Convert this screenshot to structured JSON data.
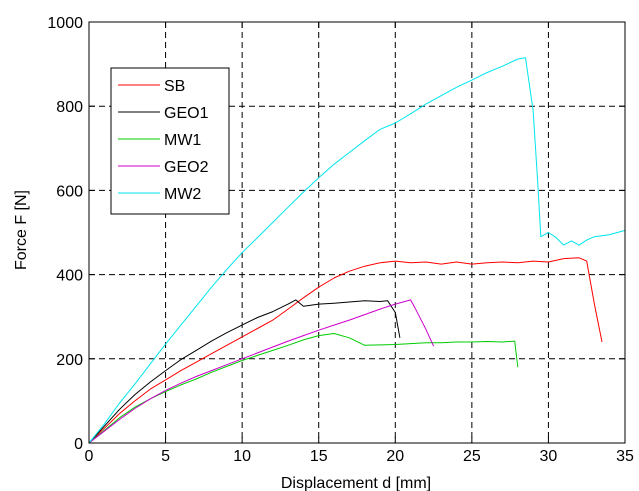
{
  "chart_data": {
    "type": "line",
    "xlabel": "Displacement d [mm]",
    "ylabel": "Force F [N]",
    "xlim": [
      0,
      35
    ],
    "ylim": [
      0,
      1000
    ],
    "xticks": [
      0,
      5,
      10,
      15,
      20,
      25,
      30,
      35
    ],
    "yticks": [
      0,
      200,
      400,
      600,
      800,
      1000
    ],
    "x_tick_labels": [
      "0",
      "5",
      "10",
      "15",
      "20",
      "25",
      "30",
      "35"
    ],
    "y_tick_labels": [
      "0",
      "200",
      "400",
      "600",
      "800",
      "1000"
    ],
    "grid": "dashed",
    "legend_position": "top-left",
    "series": [
      {
        "name": "SB",
        "color": "#ff0000",
        "points": [
          [
            0,
            0
          ],
          [
            1,
            35
          ],
          [
            2,
            70
          ],
          [
            3,
            100
          ],
          [
            4,
            128
          ],
          [
            5,
            150
          ],
          [
            6,
            172
          ],
          [
            7,
            192
          ],
          [
            8,
            212
          ],
          [
            9,
            232
          ],
          [
            10,
            252
          ],
          [
            11,
            272
          ],
          [
            12,
            292
          ],
          [
            13,
            318
          ],
          [
            14,
            345
          ],
          [
            15,
            370
          ],
          [
            16,
            392
          ],
          [
            17,
            408
          ],
          [
            18,
            420
          ],
          [
            19,
            428
          ],
          [
            20,
            432
          ],
          [
            21,
            428
          ],
          [
            22,
            430
          ],
          [
            23,
            425
          ],
          [
            24,
            430
          ],
          [
            25,
            425
          ],
          [
            26,
            428
          ],
          [
            27,
            430
          ],
          [
            28,
            428
          ],
          [
            29,
            432
          ],
          [
            30,
            430
          ],
          [
            31,
            438
          ],
          [
            32,
            440
          ],
          [
            32.5,
            432
          ],
          [
            33,
            330
          ],
          [
            33.5,
            240
          ]
        ]
      },
      {
        "name": "GEO1",
        "color": "#000000",
        "points": [
          [
            0,
            0
          ],
          [
            1,
            40
          ],
          [
            2,
            80
          ],
          [
            3,
            115
          ],
          [
            4,
            145
          ],
          [
            5,
            172
          ],
          [
            6,
            198
          ],
          [
            7,
            220
          ],
          [
            8,
            242
          ],
          [
            9,
            262
          ],
          [
            10,
            280
          ],
          [
            11,
            298
          ],
          [
            12,
            312
          ],
          [
            13,
            330
          ],
          [
            13.5,
            340
          ],
          [
            14,
            325
          ],
          [
            15,
            330
          ],
          [
            16,
            332
          ],
          [
            17,
            335
          ],
          [
            18,
            338
          ],
          [
            19,
            336
          ],
          [
            19.5,
            338
          ],
          [
            20,
            310
          ],
          [
            20.3,
            250
          ]
        ]
      },
      {
        "name": "MW1",
        "color": "#00cc00",
        "points": [
          [
            0,
            0
          ],
          [
            1,
            30
          ],
          [
            2,
            60
          ],
          [
            3,
            85
          ],
          [
            4,
            105
          ],
          [
            5,
            122
          ],
          [
            6,
            138
          ],
          [
            7,
            152
          ],
          [
            8,
            168
          ],
          [
            9,
            182
          ],
          [
            10,
            196
          ],
          [
            11,
            208
          ],
          [
            12,
            220
          ],
          [
            13,
            232
          ],
          [
            14,
            245
          ],
          [
            15,
            255
          ],
          [
            16,
            260
          ],
          [
            17,
            250
          ],
          [
            18,
            232
          ],
          [
            19,
            233
          ],
          [
            20,
            234
          ],
          [
            21,
            236
          ],
          [
            22,
            238
          ],
          [
            23,
            238
          ],
          [
            24,
            240
          ],
          [
            25,
            240
          ],
          [
            26,
            241
          ],
          [
            27,
            240
          ],
          [
            27.8,
            242
          ],
          [
            28,
            180
          ]
        ]
      },
      {
        "name": "GEO2",
        "color": "#cc00cc",
        "points": [
          [
            0,
            0
          ],
          [
            1,
            28
          ],
          [
            2,
            56
          ],
          [
            3,
            82
          ],
          [
            4,
            105
          ],
          [
            5,
            125
          ],
          [
            6,
            142
          ],
          [
            7,
            158
          ],
          [
            8,
            172
          ],
          [
            9,
            186
          ],
          [
            10,
            200
          ],
          [
            11,
            214
          ],
          [
            12,
            228
          ],
          [
            13,
            242
          ],
          [
            14,
            255
          ],
          [
            15,
            268
          ],
          [
            16,
            280
          ],
          [
            17,
            292
          ],
          [
            18,
            305
          ],
          [
            19,
            318
          ],
          [
            20,
            330
          ],
          [
            21,
            340
          ],
          [
            21.3,
            320
          ],
          [
            22,
            270
          ],
          [
            22.5,
            230
          ]
        ]
      },
      {
        "name": "MW2",
        "color": "#00e5ee",
        "points": [
          [
            0,
            0
          ],
          [
            1,
            45
          ],
          [
            2,
            95
          ],
          [
            3,
            140
          ],
          [
            4,
            188
          ],
          [
            5,
            235
          ],
          [
            6,
            280
          ],
          [
            7,
            325
          ],
          [
            8,
            370
          ],
          [
            9,
            412
          ],
          [
            10,
            452
          ],
          [
            11,
            488
          ],
          [
            12,
            524
          ],
          [
            13,
            560
          ],
          [
            14,
            596
          ],
          [
            15,
            630
          ],
          [
            16,
            662
          ],
          [
            17,
            690
          ],
          [
            18,
            718
          ],
          [
            19,
            745
          ],
          [
            20,
            760
          ],
          [
            21,
            782
          ],
          [
            22,
            805
          ],
          [
            23,
            825
          ],
          [
            24,
            845
          ],
          [
            25,
            862
          ],
          [
            26,
            880
          ],
          [
            27,
            895
          ],
          [
            28,
            912
          ],
          [
            28.5,
            915
          ],
          [
            29,
            790
          ],
          [
            29.3,
            620
          ],
          [
            29.5,
            490
          ],
          [
            30,
            500
          ],
          [
            30.5,
            488
          ],
          [
            31,
            470
          ],
          [
            31.5,
            480
          ],
          [
            32,
            470
          ],
          [
            32.5,
            482
          ],
          [
            33,
            490
          ],
          [
            34,
            495
          ],
          [
            35,
            505
          ]
        ]
      }
    ]
  }
}
